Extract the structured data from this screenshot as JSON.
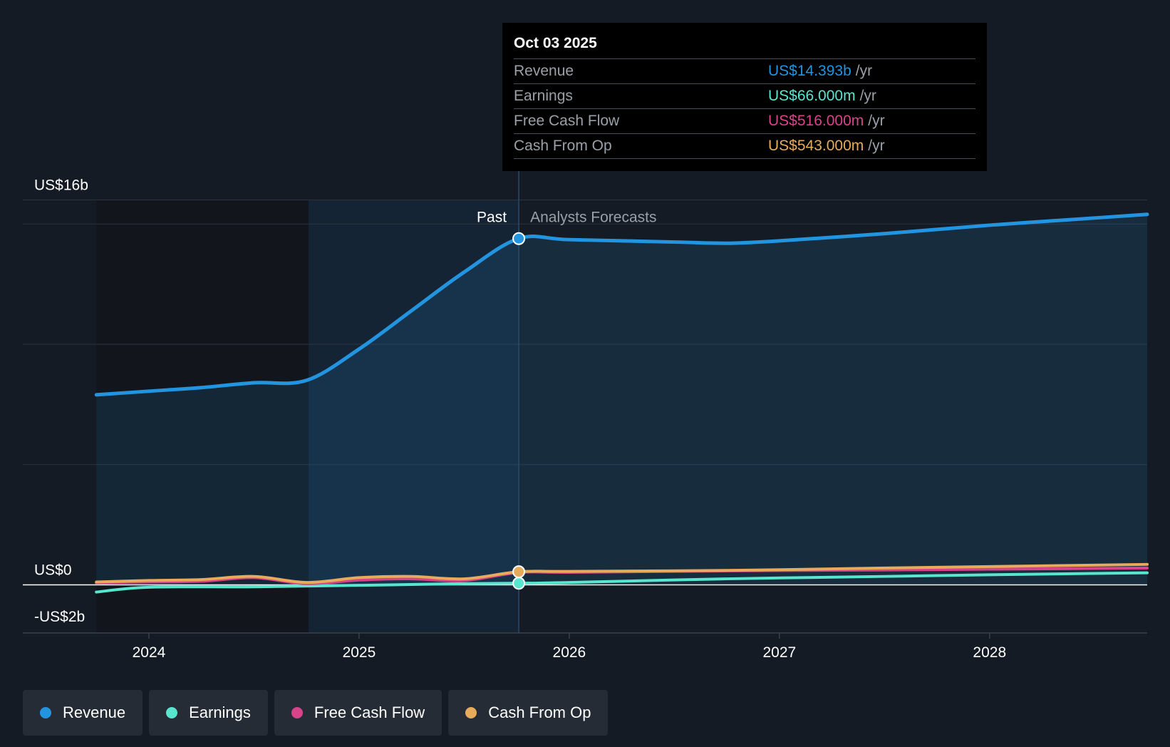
{
  "colors": {
    "revenue": "#2394df",
    "earnings": "#58e6cf",
    "fcf": "#d8448a",
    "cfo": "#e8ab5c",
    "background": "#151b24"
  },
  "tooltip": {
    "date": "Oct 03 2025",
    "rows": [
      {
        "label": "Revenue",
        "value": "US$14.393b",
        "unit": "/yr"
      },
      {
        "label": "Earnings",
        "value": "US$66.000m",
        "unit": "/yr"
      },
      {
        "label": "Free Cash Flow",
        "value": "US$516.000m",
        "unit": "/yr"
      },
      {
        "label": "Cash From Op",
        "value": "US$543.000m",
        "unit": "/yr"
      }
    ]
  },
  "legend": [
    {
      "label": "Revenue",
      "icon": "revenue-dot"
    },
    {
      "label": "Earnings",
      "icon": "earnings-dot"
    },
    {
      "label": "Free Cash Flow",
      "icon": "free-cash-flow-dot"
    },
    {
      "label": "Cash From Op",
      "icon": "cash-from-op-dot"
    }
  ],
  "chart_data": {
    "type": "line",
    "title": "",
    "xlabel": "",
    "ylabel": "",
    "xlim": [
      2023.4,
      2028.75
    ],
    "ylim": [
      -2,
      17.2
    ],
    "y_tick_labels": [
      {
        "value": 16,
        "label": "US$16b"
      },
      {
        "value": 0,
        "label": "US$0"
      },
      {
        "value": -2,
        "label": "-US$2b"
      }
    ],
    "gridlines": [
      15,
      10,
      5
    ],
    "x_ticks": [
      {
        "value": 2024,
        "label": "2024"
      },
      {
        "value": 2025,
        "label": "2025"
      },
      {
        "value": 2026,
        "label": "2026"
      },
      {
        "value": 2027,
        "label": "2027"
      },
      {
        "value": 2028,
        "label": "2028"
      }
    ],
    "past_label": "Past",
    "forecast_label": "Analysts Forecasts",
    "shaded_region_start": 2024.76,
    "current": 2025.76,
    "grid": true,
    "legend_position": "bottom",
    "series": [
      {
        "name": "Revenue",
        "x": [
          2023.75,
          2024.0,
          2024.25,
          2024.5,
          2024.75,
          2025.0,
          2025.25,
          2025.5,
          2025.76,
          2026.0,
          2026.5,
          2026.75,
          2027.0,
          2027.5,
          2028.0,
          2028.5,
          2028.75
        ],
        "y": [
          7.9,
          8.05,
          8.2,
          8.4,
          8.5,
          9.8,
          11.4,
          13.0,
          14.393,
          14.35,
          14.25,
          14.2,
          14.3,
          14.6,
          14.95,
          15.25,
          15.4
        ]
      },
      {
        "name": "Earnings",
        "x": [
          2023.75,
          2024.0,
          2024.5,
          2025.0,
          2025.5,
          2025.76,
          2026.0,
          2026.75,
          2027.5,
          2028.0,
          2028.75
        ],
        "y": [
          -0.3,
          -0.1,
          -0.08,
          -0.02,
          0.05,
          0.066,
          0.1,
          0.25,
          0.35,
          0.42,
          0.5
        ]
      },
      {
        "name": "Free Cash Flow",
        "x": [
          2023.75,
          2024.0,
          2024.25,
          2024.5,
          2024.75,
          2025.0,
          2025.25,
          2025.5,
          2025.76,
          2026.0,
          2026.75,
          2027.5,
          2028.0,
          2028.75
        ],
        "y": [
          0.08,
          0.12,
          0.15,
          0.3,
          0.05,
          0.2,
          0.25,
          0.18,
          0.516,
          0.52,
          0.58,
          0.62,
          0.65,
          0.7
        ]
      },
      {
        "name": "Cash From Op",
        "x": [
          2023.75,
          2024.0,
          2024.25,
          2024.5,
          2024.75,
          2025.0,
          2025.25,
          2025.5,
          2025.76,
          2026.0,
          2026.75,
          2027.5,
          2028.0,
          2028.75
        ],
        "y": [
          0.12,
          0.18,
          0.22,
          0.35,
          0.1,
          0.3,
          0.35,
          0.25,
          0.543,
          0.56,
          0.6,
          0.7,
          0.76,
          0.85
        ]
      }
    ]
  }
}
